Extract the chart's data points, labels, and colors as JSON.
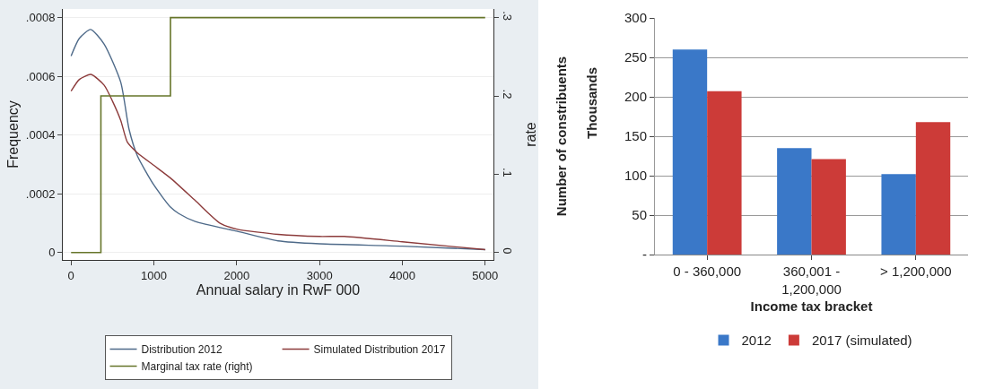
{
  "chart_data": [
    {
      "type": "line",
      "xlabel": "Annual salary in RwF 000",
      "ylabel": "Frequency",
      "y2label": "rate",
      "xlim": [
        -100,
        5100
      ],
      "xticks": [
        0,
        1000,
        2000,
        3000,
        4000,
        5000
      ],
      "ylim": [
        -2.5e-05,
        0.00083
      ],
      "yticks": [
        {
          "value": 0,
          "label": "0"
        },
        {
          "value": 0.0002,
          "label": ".0002"
        },
        {
          "value": 0.0004,
          "label": ".0004"
        },
        {
          "value": 0.0006,
          "label": ".0006"
        },
        {
          "value": 0.0008,
          "label": ".0008"
        }
      ],
      "y2lim": [
        -0.0094,
        0.311
      ],
      "y2ticks": [
        {
          "value": 0,
          "label": "0"
        },
        {
          "value": 0.1,
          "label": ".1"
        },
        {
          "value": 0.2,
          "label": ".2"
        },
        {
          "value": 0.3,
          "label": ".3"
        }
      ],
      "grid": "y",
      "legend": "bottom",
      "marker": "none",
      "line_style": "solid",
      "series": [
        {
          "name": "Distribution 2012",
          "color": "#4e6a89",
          "x": [
            0,
            100,
            236,
            400,
            600,
            700,
            800,
            1000,
            1200,
            1300,
            1500,
            2000,
            2500,
            3000,
            4000,
            5000
          ],
          "values": [
            0.00067,
            0.00073,
            0.00076,
            0.00071,
            0.00058,
            0.00042,
            0.00033,
            0.00023,
            0.000155,
            0.000133,
            0.000106,
            7.3e-05,
            4e-05,
            3e-05,
            2.2e-05,
            1e-05
          ]
        },
        {
          "name": "Simulated Distribution 2017",
          "color": "#8c3b3b",
          "x": [
            0,
            100,
            240,
            400,
            500,
            600,
            680,
            800,
            1000,
            1200,
            1500,
            1800,
            2000,
            2500,
            3000,
            3300,
            4000,
            5000
          ],
          "values": [
            0.00055,
            0.00059,
            0.000607,
            0.00057,
            0.000516,
            0.00045,
            0.000376,
            0.00034,
            0.000297,
            0.000254,
            0.000177,
            0.0001,
            8e-05,
            6.2e-05,
            5.5e-05,
            5.5e-05,
            3.7e-05,
            1e-05
          ]
        },
        {
          "name": "Marginal tax rate (right)",
          "color": "#66752a",
          "type": "step",
          "axis": "y2",
          "x": [
            0,
            360,
            1200,
            5000
          ],
          "values": [
            0,
            0.2,
            0.3,
            0.3
          ]
        }
      ]
    },
    {
      "type": "bar",
      "categories": [
        "0 - 360,000",
        "360,001 - 1,200,000",
        "> 1,200,000"
      ],
      "xlabel": "Income tax bracket",
      "ylabel": "Number of constribuents",
      "annotations": [
        "Thousands"
      ],
      "ylim": [
        0,
        300
      ],
      "yticks": [
        {
          "value": 0,
          "label": "-"
        },
        50,
        100,
        150,
        200,
        250,
        300
      ],
      "grid": "y",
      "legend": "bottom",
      "series": [
        {
          "name": "2012",
          "color": "#3a78c8",
          "values": [
            260,
            135,
            102
          ]
        },
        {
          "name": "2017 (simulated)",
          "color": "#cc3b38",
          "values": [
            207,
            121,
            168
          ]
        }
      ]
    }
  ]
}
